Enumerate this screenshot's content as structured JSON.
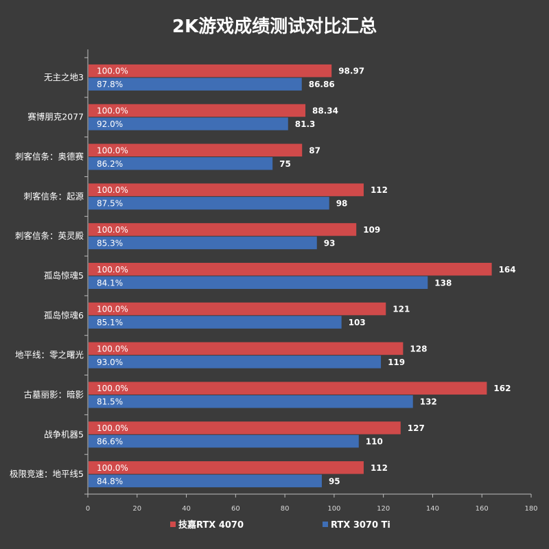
{
  "chart_data": {
    "type": "bar",
    "orientation": "horizontal",
    "title": "2K游戏成绩测试对比汇总",
    "categories": [
      "无主之地3",
      "赛博朋克2077",
      "刺客信条：奥德赛",
      "刺客信条：起源",
      "刺客信条：英灵殿",
      "孤岛惊魂5",
      "孤岛惊魂6",
      "地平线：零之曙光",
      "古墓丽影：暗影",
      "战争机器5",
      "极限竞速：地平线5"
    ],
    "series": [
      {
        "name": "技嘉RTX 4070",
        "color": "#d04a4a",
        "values": [
          98.97,
          88.34,
          87,
          112,
          109,
          164,
          121,
          128,
          162,
          127,
          112
        ],
        "value_labels": [
          "98.97",
          "88.34",
          "87",
          "112",
          "109",
          "164",
          "121",
          "128",
          "162",
          "127",
          "112"
        ],
        "percent_labels": [
          "100.0%",
          "100.0%",
          "100.0%",
          "100.0%",
          "100.0%",
          "100.0%",
          "100.0%",
          "100.0%",
          "100.0%",
          "100.0%",
          "100.0%"
        ]
      },
      {
        "name": "RTX 3070 Ti",
        "color": "#3f6eb5",
        "values": [
          86.86,
          81.3,
          75,
          98,
          93,
          138,
          103,
          119,
          132,
          110,
          95
        ],
        "value_labels": [
          "86.86",
          "81.3",
          "75",
          "98",
          "93",
          "138",
          "103",
          "119",
          "132",
          "110",
          "95"
        ],
        "percent_labels": [
          "87.8%",
          "92.0%",
          "86.2%",
          "87.5%",
          "85.3%",
          "84.1%",
          "85.1%",
          "93.0%",
          "81.5%",
          "86.6%",
          "84.8%"
        ]
      }
    ],
    "xlim": [
      0,
      180
    ],
    "xticks": [
      0,
      20,
      40,
      60,
      80,
      100,
      120,
      140,
      160,
      180
    ],
    "grid": false,
    "legend": "bottom"
  }
}
